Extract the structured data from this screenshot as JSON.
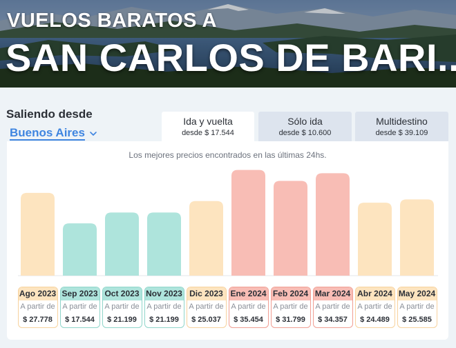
{
  "hero": {
    "subtitle": "VUELOS BARATOS A",
    "title": "SAN CARLOS DE BARI..."
  },
  "origin": {
    "label": "Saliendo desde",
    "city": "Buenos Aires",
    "icon": "chevron-down-icon"
  },
  "trip_types": [
    {
      "label": "Ida y vuelta",
      "price": "desde $ 17.544",
      "selected": true
    },
    {
      "label": "Sólo ida",
      "price": "desde $ 10.600",
      "selected": false
    },
    {
      "label": "Multidestino",
      "price": "desde $ 39.109",
      "selected": false
    }
  ],
  "caption": "Los mejores precios encontrados en las últimas 24hs.",
  "colors": {
    "low": "#aee4dc",
    "low_border": "#8fd5ca",
    "mid": "#fde4bf",
    "mid_border": "#f7d29d",
    "high": "#f8bdb5",
    "high_border": "#f09e93",
    "accent": "#3f85e0"
  },
  "chart_data": {
    "type": "bar",
    "categories": [
      "Ago 2023",
      "Sep 2023",
      "Oct 2023",
      "Nov 2023",
      "Dic 2023",
      "Ene 2024",
      "Feb 2024",
      "Mar 2024",
      "Abr 2024",
      "May 2024"
    ],
    "values": [
      27778,
      17544,
      21199,
      21199,
      25037,
      35454,
      31799,
      34357,
      24489,
      25585
    ],
    "price_labels": [
      "$ 27.778",
      "$ 17.544",
      "$ 21.199",
      "$ 21.199",
      "$ 25.037",
      "$ 35.454",
      "$ 31.799",
      "$ 34.357",
      "$ 24.489",
      "$ 25.585"
    ],
    "tiers": [
      "mid",
      "low",
      "low",
      "low",
      "mid",
      "high",
      "high",
      "high",
      "mid",
      "mid"
    ],
    "from_label": "A partir de",
    "ylim": [
      0,
      37000
    ],
    "grid": false
  }
}
